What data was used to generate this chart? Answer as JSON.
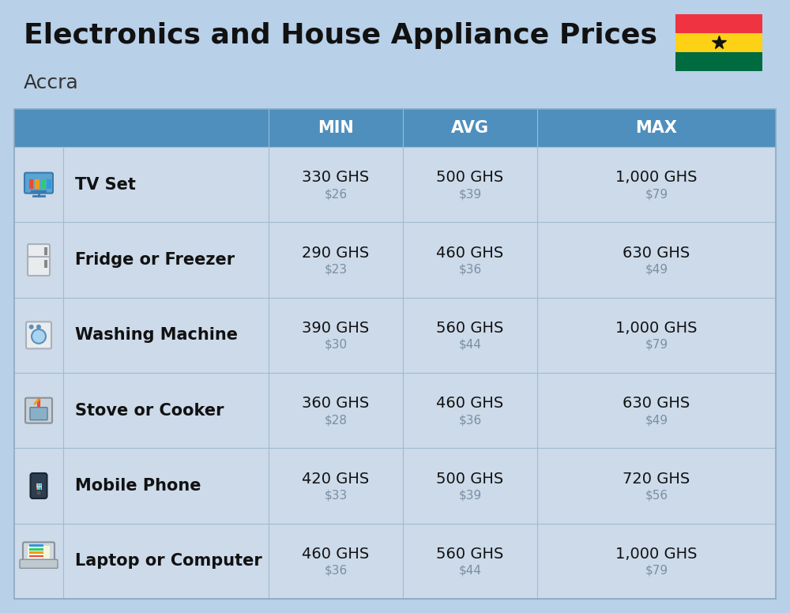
{
  "title": "Electronics and House Appliance Prices",
  "subtitle": "Accra",
  "background_color": "#b8d0e8",
  "header_bg_color": "#4e8fbe",
  "header_text_color": "#ffffff",
  "row_bg_color": "#ccdaea",
  "col_divider_color": "#a0bcce",
  "header_labels": [
    "MIN",
    "AVG",
    "MAX"
  ],
  "items": [
    {
      "name": "TV Set",
      "min_ghs": "330 GHS",
      "min_usd": "$26",
      "avg_ghs": "500 GHS",
      "avg_usd": "$39",
      "max_ghs": "1,000 GHS",
      "max_usd": "$79"
    },
    {
      "name": "Fridge or Freezer",
      "min_ghs": "290 GHS",
      "min_usd": "$23",
      "avg_ghs": "460 GHS",
      "avg_usd": "$36",
      "max_ghs": "630 GHS",
      "max_usd": "$49"
    },
    {
      "name": "Washing Machine",
      "min_ghs": "390 GHS",
      "min_usd": "$30",
      "avg_ghs": "560 GHS",
      "avg_usd": "$44",
      "max_ghs": "1,000 GHS",
      "max_usd": "$79"
    },
    {
      "name": "Stove or Cooker",
      "min_ghs": "360 GHS",
      "min_usd": "$28",
      "avg_ghs": "460 GHS",
      "avg_usd": "$36",
      "max_ghs": "630 GHS",
      "max_usd": "$49"
    },
    {
      "name": "Mobile Phone",
      "min_ghs": "420 GHS",
      "min_usd": "$33",
      "avg_ghs": "500 GHS",
      "avg_usd": "$39",
      "max_ghs": "720 GHS",
      "max_usd": "$56"
    },
    {
      "name": "Laptop or Computer",
      "min_ghs": "460 GHS",
      "min_usd": "$36",
      "avg_ghs": "560 GHS",
      "avg_usd": "$44",
      "max_ghs": "1,000 GHS",
      "max_usd": "$79"
    }
  ],
  "ghana_flag_colors": [
    "#EF3340",
    "#FCD116",
    "#006B3F"
  ],
  "title_fontsize": 26,
  "subtitle_fontsize": 18,
  "header_fontsize": 15,
  "item_name_fontsize": 15,
  "value_fontsize": 14,
  "usd_fontsize": 11
}
